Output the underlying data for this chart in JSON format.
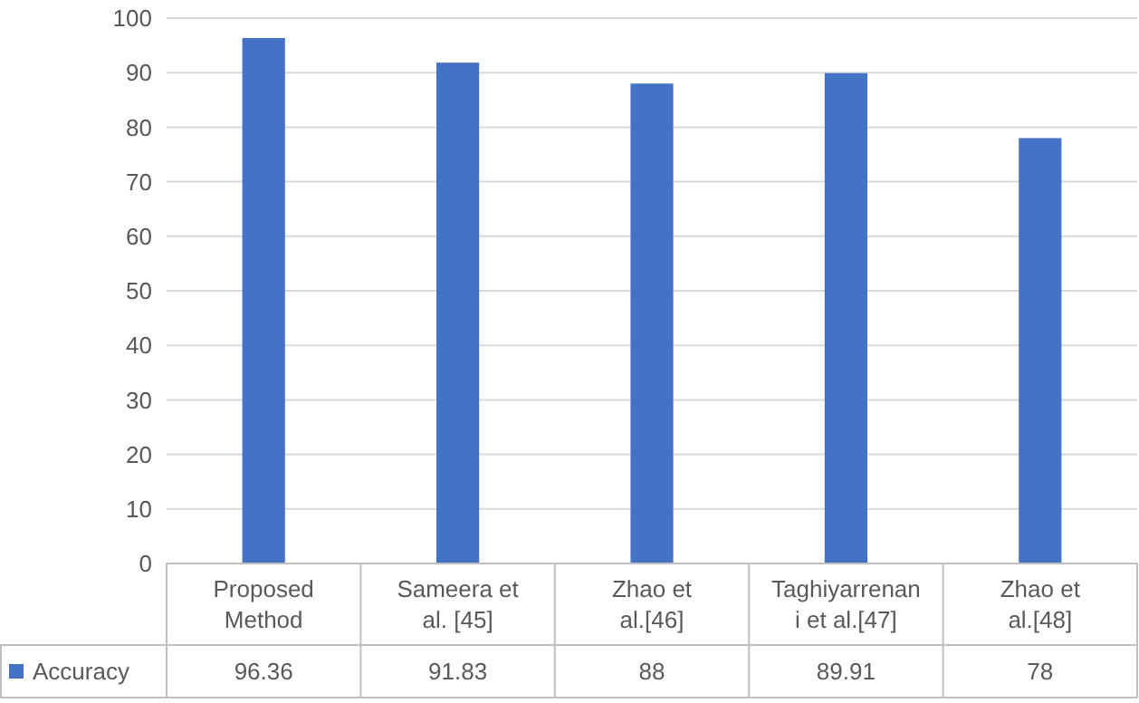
{
  "chart_data": {
    "type": "bar",
    "categories": [
      "Proposed Method",
      "Sameera et al. [45]",
      "Zhao et al.[46]",
      "Taghiyarrenani et al.[47]",
      "Zhao et al.[48]"
    ],
    "series": [
      {
        "name": "Accuracy",
        "color": "#4472c4",
        "values": [
          96.36,
          91.83,
          88,
          89.91,
          78
        ]
      }
    ],
    "ylim": [
      0,
      100
    ],
    "yticks": [
      0,
      10,
      20,
      30,
      40,
      50,
      60,
      70,
      80,
      90,
      100
    ],
    "grid": "y",
    "legend": "bottom left",
    "data_labels": true
  }
}
